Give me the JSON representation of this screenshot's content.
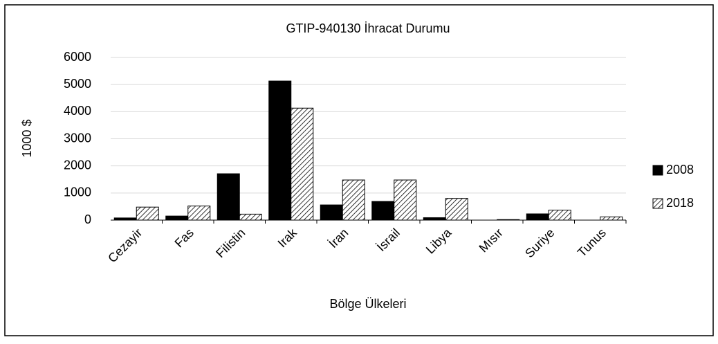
{
  "chart_data": {
    "type": "bar",
    "title": "GTIP-940130 İhracat Durumu",
    "x_label": "Bölge Ülkeleri",
    "y_label": "1000 $",
    "categories": [
      "Cezayir",
      "Fas",
      "Filistin",
      "Irak",
      "İran",
      "İsrail",
      "Libya",
      "Mısır",
      "Suriye",
      "Tunus"
    ],
    "series": [
      {
        "name": "2008",
        "color": "#000000",
        "pattern": "solid",
        "values": [
          80,
          150,
          1710,
          5130,
          560,
          690,
          90,
          0,
          230,
          0
        ]
      },
      {
        "name": "2018",
        "color": "#000000",
        "pattern": "hatch",
        "values": [
          480,
          520,
          220,
          4130,
          1480,
          1480,
          800,
          20,
          370,
          120
        ]
      }
    ],
    "ylim": [
      0,
      6000
    ],
    "yticks": [
      0,
      1000,
      2000,
      3000,
      4000,
      5000,
      6000
    ],
    "grid": true,
    "legend": "right"
  }
}
